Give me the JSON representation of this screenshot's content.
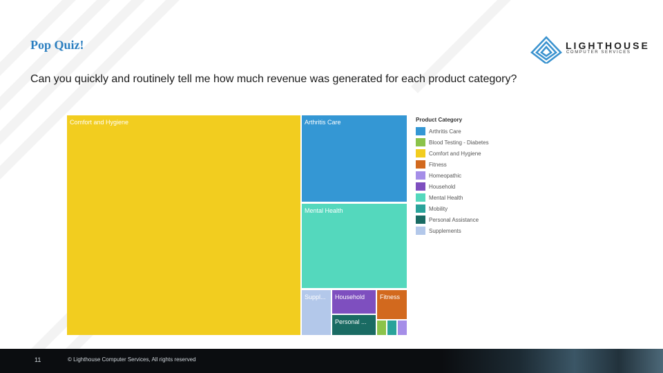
{
  "slide": {
    "title": "Pop Quiz!",
    "question": "Can you quickly and routinely tell me how much revenue was generated for each product category?",
    "page_number": "11",
    "copyright": "© Lighthouse Computer Services, All rights reserved"
  },
  "logo": {
    "name": "LIGHTHOUSE",
    "subtitle": "COMPUTER SERVICES"
  },
  "chart_data": {
    "type": "treemap",
    "title": "",
    "legend_title": "Product Category",
    "legend_position": "right",
    "categories": [
      "Arthritis Care",
      "Blood Testing - Diabetes",
      "Comfort and Hygiene",
      "Fitness",
      "Homeopathic",
      "Household",
      "Mental Health",
      "Mobility",
      "Personal Assistance",
      "Supplements"
    ],
    "colors": {
      "Arthritis Care": "#3497d4",
      "Blood Testing - Diabetes": "#8bc34a",
      "Comfort and Hygiene": "#f2cd1f",
      "Fitness": "#d2691e",
      "Homeopathic": "#a58ee8",
      "Household": "#7e4fbf",
      "Mental Health": "#54d8bd",
      "Mobility": "#2aa39a",
      "Personal Assistance": "#1a6b63",
      "Supplements": "#b3c8ea"
    },
    "tile_labels": {
      "Comfort and Hygiene": "Comfort and Hygiene",
      "Arthritis Care": "Arthritis Care",
      "Mental Health": "Mental Health",
      "Supplements": "Suppl...",
      "Household": "Household",
      "Fitness": "Fitness",
      "Personal Assistance": "Personal ..."
    },
    "approx_share_percent": {
      "Comfort and Hygiene": 69.0,
      "Arthritis Care": 10.6,
      "Mental Health": 10.6,
      "Supplements": 2.8,
      "Household": 1.6,
      "Personal Assistance": 1.4,
      "Fitness": 1.5,
      "Blood Testing - Diabetes": 0.6,
      "Mobility": 0.6,
      "Homeopathic": 0.6
    }
  }
}
